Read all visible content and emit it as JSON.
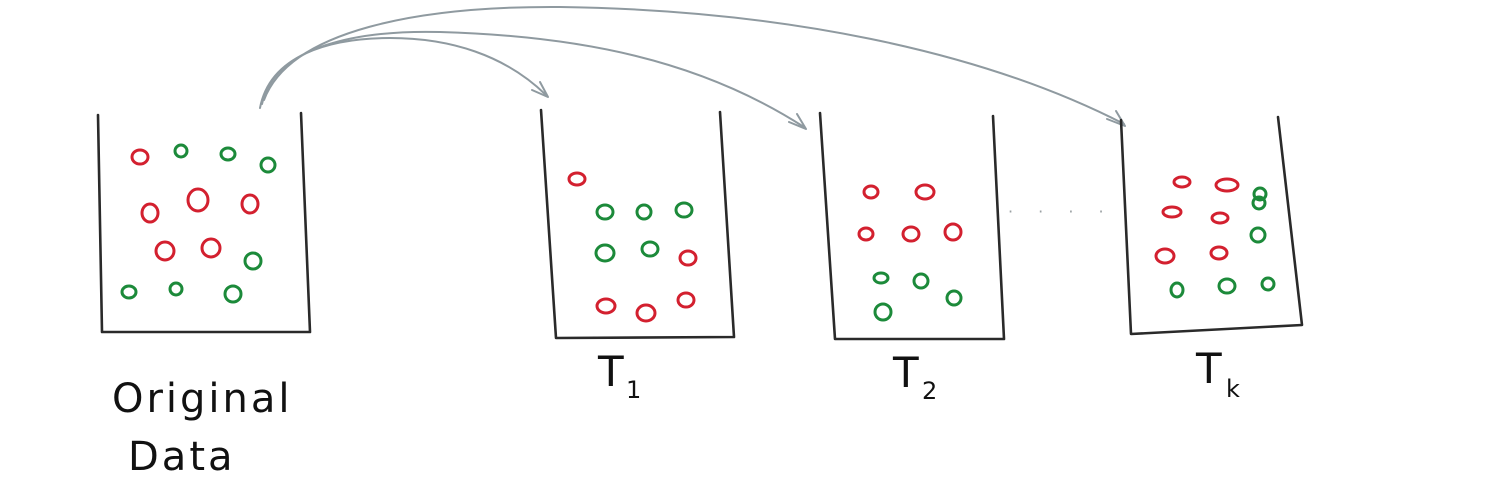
{
  "colors": {
    "red": "#d3202f",
    "green": "#1c8a3a",
    "ink": "#2a2a2a",
    "arrow": "#8f9aa0"
  },
  "original": {
    "label_line1": "Original",
    "label_line2": "Data",
    "balls": [
      "red",
      "green",
      "green",
      "green",
      "red",
      "red",
      "red",
      "red",
      "red",
      "green",
      "green",
      "green",
      "green"
    ]
  },
  "samples": [
    {
      "label_main": "T",
      "label_sub": "1",
      "balls": [
        "red",
        "green",
        "green",
        "green",
        "green",
        "green",
        "red",
        "red",
        "red",
        "red"
      ]
    },
    {
      "label_main": "T",
      "label_sub": "2",
      "balls": [
        "red",
        "red",
        "red",
        "red",
        "red",
        "green",
        "green",
        "green",
        "green"
      ]
    },
    {
      "label_main": "T",
      "label_sub": "k",
      "balls": [
        "red",
        "red",
        "green",
        "red",
        "red",
        "green",
        "red",
        "red",
        "green",
        "green",
        "green",
        "green"
      ]
    }
  ],
  "ellipsis": "· · · ·"
}
